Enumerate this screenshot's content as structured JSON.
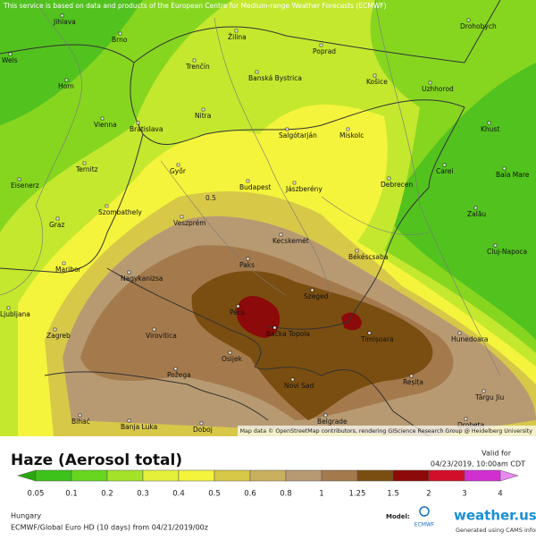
{
  "attribution_top": "This service is based on data and products of the European Centre for Medium-range Weather Forecasts (ECMWF)",
  "attribution_map": "Map data © OpenStreetMap contributors, rendering GIScience Research Group @ Heidelberg University",
  "cities": [
    "Jihlava",
    "Brno",
    "Žilina",
    "Poprad",
    "Drohobych",
    "Wels",
    "Horn",
    "Trenčín",
    "Banská Bystrica",
    "Košice",
    "Uzhhorod",
    "Vienna",
    "Bratislava",
    "Nitra",
    "Salgótarján",
    "Miskolc",
    "Khust",
    "Ternitz",
    "Győr",
    "Carei",
    "Baia Mare",
    "Eisenerz",
    "Budapest",
    "Jászberény",
    "Debrecen",
    "Szombathely",
    "Veszprém",
    "Zalău",
    "Graz",
    "Kecskemét",
    "Békéscsaba",
    "Cluj-Napoca",
    "Paks",
    "Maribor",
    "Nagykanizsa",
    "Szeged",
    "Pécs",
    "Ljubljana",
    "Bačka Topola",
    "Timișoara",
    "Zagreb",
    "Virovitica",
    "Hunedoara",
    "Osijek",
    "Požega",
    "Novi Sad",
    "Reșița",
    "Târgu Jiu",
    "Bihać",
    "Banja Luka",
    "Belgrade",
    "Doboj",
    "Drobeta"
  ],
  "contour_label": "0.5",
  "title": "Haze (Aerosol total)",
  "valid_label": "Valid for",
  "valid_time": "04/23/2019, 10:00am CDT",
  "legend": {
    "labels": [
      0.05,
      0.1,
      0.2,
      0.3,
      0.4,
      0.5,
      0.6,
      0.8,
      1,
      1.25,
      1.5,
      2,
      3,
      4
    ]
  },
  "region": "Hungary",
  "model_run": "ECMWF/Global Euro HD (10 days) from 04/21/2019/00z",
  "model_label": "Model:",
  "model_name": "ECMWF",
  "brand": "weather.us",
  "generated": "Generated using CAMS information"
}
